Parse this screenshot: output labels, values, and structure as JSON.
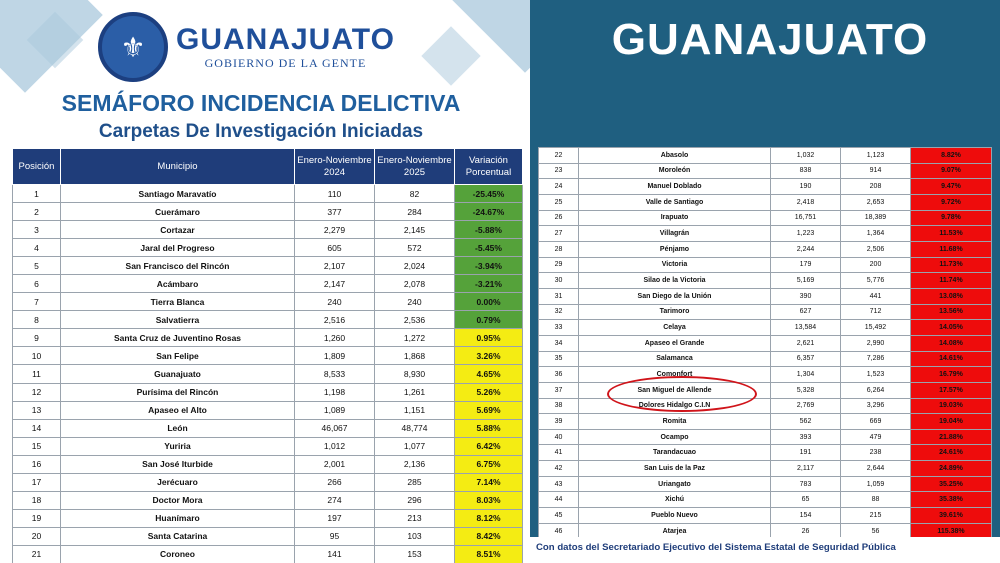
{
  "brand": {
    "name": "GUANAJUATO",
    "tagline": "GOBIERNO DE LA GENTE",
    "seal_icon": "state-seal-icon"
  },
  "title": "SEMÁFORO INCIDENCIA DELICTIVA",
  "subtitle": "Carpetas De Investigación Iniciadas",
  "state_label": "GUANAJUATO",
  "columns": [
    "Posición",
    "Municipio",
    "Enero-Noviembre 2024",
    "Enero-Noviembre 2025",
    "Variación Porcentual"
  ],
  "colors": {
    "green": "#55a23a",
    "yellow": "#f4ec13",
    "red": "#ee0c0c",
    "header": "#1f3d7a",
    "panel": "#1f5f80"
  },
  "rows_left": [
    {
      "pos": "1",
      "mun": "Santiago Maravatío",
      "y2024": "110",
      "y2025": "82",
      "pct": "-25.45%",
      "level": "green"
    },
    {
      "pos": "2",
      "mun": "Cuerámaro",
      "y2024": "377",
      "y2025": "284",
      "pct": "-24.67%",
      "level": "green"
    },
    {
      "pos": "3",
      "mun": "Cortazar",
      "y2024": "2,279",
      "y2025": "2,145",
      "pct": "-5.88%",
      "level": "green"
    },
    {
      "pos": "4",
      "mun": "Jaral del Progreso",
      "y2024": "605",
      "y2025": "572",
      "pct": "-5.45%",
      "level": "green"
    },
    {
      "pos": "5",
      "mun": "San Francisco del Rincón",
      "y2024": "2,107",
      "y2025": "2,024",
      "pct": "-3.94%",
      "level": "green"
    },
    {
      "pos": "6",
      "mun": "Acámbaro",
      "y2024": "2,147",
      "y2025": "2,078",
      "pct": "-3.21%",
      "level": "green"
    },
    {
      "pos": "7",
      "mun": "Tierra Blanca",
      "y2024": "240",
      "y2025": "240",
      "pct": "0.00%",
      "level": "green"
    },
    {
      "pos": "8",
      "mun": "Salvatierra",
      "y2024": "2,516",
      "y2025": "2,536",
      "pct": "0.79%",
      "level": "green"
    },
    {
      "pos": "9",
      "mun": "Santa Cruz de Juventino Rosas",
      "y2024": "1,260",
      "y2025": "1,272",
      "pct": "0.95%",
      "level": "yellow"
    },
    {
      "pos": "10",
      "mun": "San Felipe",
      "y2024": "1,809",
      "y2025": "1,868",
      "pct": "3.26%",
      "level": "yellow"
    },
    {
      "pos": "11",
      "mun": "Guanajuato",
      "y2024": "8,533",
      "y2025": "8,930",
      "pct": "4.65%",
      "level": "yellow"
    },
    {
      "pos": "12",
      "mun": "Purísima del Rincón",
      "y2024": "1,198",
      "y2025": "1,261",
      "pct": "5.26%",
      "level": "yellow"
    },
    {
      "pos": "13",
      "mun": "Apaseo el Alto",
      "y2024": "1,089",
      "y2025": "1,151",
      "pct": "5.69%",
      "level": "yellow"
    },
    {
      "pos": "14",
      "mun": "León",
      "y2024": "46,067",
      "y2025": "48,774",
      "pct": "5.88%",
      "level": "yellow"
    },
    {
      "pos": "15",
      "mun": "Yuriria",
      "y2024": "1,012",
      "y2025": "1,077",
      "pct": "6.42%",
      "level": "yellow"
    },
    {
      "pos": "16",
      "mun": "San José Iturbide",
      "y2024": "2,001",
      "y2025": "2,136",
      "pct": "6.75%",
      "level": "yellow"
    },
    {
      "pos": "17",
      "mun": "Jerécuaro",
      "y2024": "266",
      "y2025": "285",
      "pct": "7.14%",
      "level": "yellow"
    },
    {
      "pos": "18",
      "mun": "Doctor Mora",
      "y2024": "274",
      "y2025": "296",
      "pct": "8.03%",
      "level": "yellow"
    },
    {
      "pos": "19",
      "mun": "Huanímaro",
      "y2024": "197",
      "y2025": "213",
      "pct": "8.12%",
      "level": "yellow"
    },
    {
      "pos": "20",
      "mun": "Santa Catarina",
      "y2024": "95",
      "y2025": "103",
      "pct": "8.42%",
      "level": "yellow"
    },
    {
      "pos": "21",
      "mun": "Coroneo",
      "y2024": "141",
      "y2025": "153",
      "pct": "8.51%",
      "level": "yellow"
    }
  ],
  "rows_right": [
    {
      "pos": "22",
      "mun": "Abasolo",
      "y2024": "1,032",
      "y2025": "1,123",
      "pct": "8.82%",
      "level": "red"
    },
    {
      "pos": "23",
      "mun": "Moroleón",
      "y2024": "838",
      "y2025": "914",
      "pct": "9.07%",
      "level": "red"
    },
    {
      "pos": "24",
      "mun": "Manuel Doblado",
      "y2024": "190",
      "y2025": "208",
      "pct": "9.47%",
      "level": "red"
    },
    {
      "pos": "25",
      "mun": "Valle de Santiago",
      "y2024": "2,418",
      "y2025": "2,653",
      "pct": "9.72%",
      "level": "red"
    },
    {
      "pos": "26",
      "mun": "Irapuato",
      "y2024": "16,751",
      "y2025": "18,389",
      "pct": "9.78%",
      "level": "red"
    },
    {
      "pos": "27",
      "mun": "Villagrán",
      "y2024": "1,223",
      "y2025": "1,364",
      "pct": "11.53%",
      "level": "red"
    },
    {
      "pos": "28",
      "mun": "Pénjamo",
      "y2024": "2,244",
      "y2025": "2,506",
      "pct": "11.68%",
      "level": "red"
    },
    {
      "pos": "29",
      "mun": "Victoria",
      "y2024": "179",
      "y2025": "200",
      "pct": "11.73%",
      "level": "red"
    },
    {
      "pos": "30",
      "mun": "Silao de la Victoria",
      "y2024": "5,169",
      "y2025": "5,776",
      "pct": "11.74%",
      "level": "red"
    },
    {
      "pos": "31",
      "mun": "San Diego de la Unión",
      "y2024": "390",
      "y2025": "441",
      "pct": "13.08%",
      "level": "red"
    },
    {
      "pos": "32",
      "mun": "Tarimoro",
      "y2024": "627",
      "y2025": "712",
      "pct": "13.56%",
      "level": "red"
    },
    {
      "pos": "33",
      "mun": "Celaya",
      "y2024": "13,584",
      "y2025": "15,492",
      "pct": "14.05%",
      "level": "red"
    },
    {
      "pos": "34",
      "mun": "Apaseo el Grande",
      "y2024": "2,621",
      "y2025": "2,990",
      "pct": "14.08%",
      "level": "red"
    },
    {
      "pos": "35",
      "mun": "Salamanca",
      "y2024": "6,357",
      "y2025": "7,286",
      "pct": "14.61%",
      "level": "red"
    },
    {
      "pos": "36",
      "mun": "Comonfort",
      "y2024": "1,304",
      "y2025": "1,523",
      "pct": "16.79%",
      "level": "red"
    },
    {
      "pos": "37",
      "mun": "San Miguel de Allende",
      "y2024": "5,328",
      "y2025": "6,264",
      "pct": "17.57%",
      "level": "red"
    },
    {
      "pos": "38",
      "mun": "Dolores Hidalgo C.I.N",
      "y2024": "2,769",
      "y2025": "3,296",
      "pct": "19.03%",
      "level": "red"
    },
    {
      "pos": "39",
      "mun": "Romita",
      "y2024": "562",
      "y2025": "669",
      "pct": "19.04%",
      "level": "red"
    },
    {
      "pos": "40",
      "mun": "Ocampo",
      "y2024": "393",
      "y2025": "479",
      "pct": "21.88%",
      "level": "red"
    },
    {
      "pos": "41",
      "mun": "Tarandacuao",
      "y2024": "191",
      "y2025": "238",
      "pct": "24.61%",
      "level": "red"
    },
    {
      "pos": "42",
      "mun": "San Luis de la Paz",
      "y2024": "2,117",
      "y2025": "2,644",
      "pct": "24.89%",
      "level": "red"
    },
    {
      "pos": "43",
      "mun": "Uriangato",
      "y2024": "783",
      "y2025": "1,059",
      "pct": "35.25%",
      "level": "red"
    },
    {
      "pos": "44",
      "mun": "Xichú",
      "y2024": "65",
      "y2025": "88",
      "pct": "35.38%",
      "level": "red"
    },
    {
      "pos": "45",
      "mun": "Pueblo Nuevo",
      "y2024": "154",
      "y2025": "215",
      "pct": "39.61%",
      "level": "red"
    },
    {
      "pos": "46",
      "mun": "Atarjea",
      "y2024": "26",
      "y2025": "56",
      "pct": "115.38%",
      "level": "red"
    }
  ],
  "footer": "Con datos del Secretariado Ejecutivo del Sistema Estatal de Seguridad Pública"
}
